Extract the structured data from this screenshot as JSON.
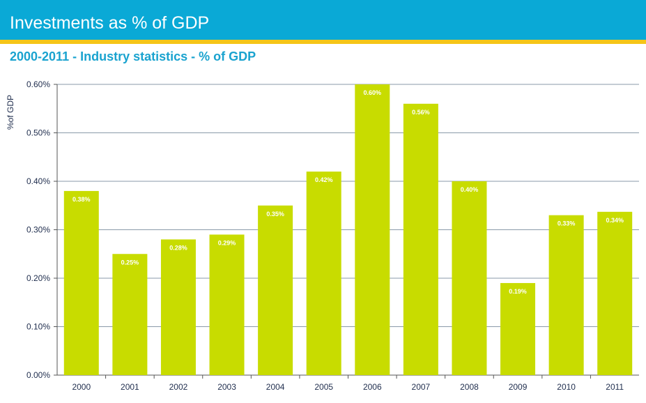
{
  "header": {
    "title": "Investments as % of GDP"
  },
  "colors": {
    "header_bg": "#0aa9d6",
    "stripe": "#f5c518",
    "bar": "#c8dc00",
    "grid": "#8a9aa8",
    "subtitle": "#1aa3cf"
  },
  "chart_data": {
    "type": "bar",
    "title": "2000-2011 - Industry statistics - % of GDP",
    "xlabel": "",
    "ylabel": "%of GDP",
    "categories": [
      "2000",
      "2001",
      "2002",
      "2003",
      "2004",
      "2005",
      "2006",
      "2007",
      "2008",
      "2009",
      "2010",
      "2011"
    ],
    "values": [
      0.38,
      0.25,
      0.28,
      0.29,
      0.35,
      0.42,
      0.6,
      0.56,
      0.4,
      0.19,
      0.33,
      0.337
    ],
    "data_labels": [
      "0.38%",
      "0.25%",
      "0.28%",
      "0.29%",
      "0.35%",
      "0.42%",
      "0.60%",
      "0.56%",
      "0.40%",
      "0.19%",
      "0.33%",
      "0.34%"
    ],
    "ylim": [
      0,
      0.6
    ],
    "yticks": [
      0,
      0.1,
      0.2,
      0.3,
      0.4,
      0.5,
      0.6
    ],
    "ytick_labels": [
      "0.00%",
      "0.10%",
      "0.20%",
      "0.30%",
      "0.40%",
      "0.50%",
      "0.60%"
    ],
    "grid": true,
    "legend": "none"
  }
}
